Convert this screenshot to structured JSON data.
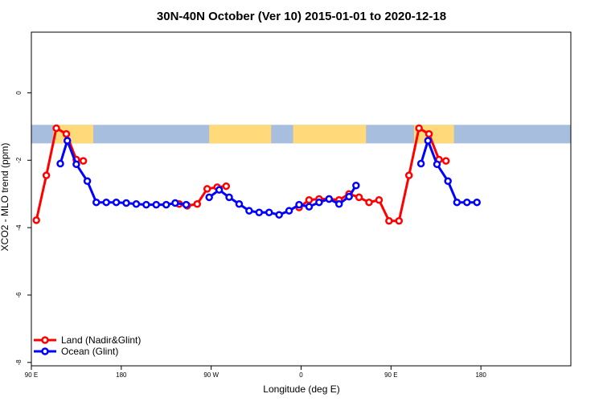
{
  "chart_data": {
    "type": "line",
    "title": "30N-40N October (Ver 10)   2015-01-01 to 2020-12-18",
    "xlabel": "Longitude (deg E)",
    "ylabel": "XCO2 - MLO trend (ppm)",
    "xlim": [
      0,
      540
    ],
    "ylim": [
      -8.1,
      1.8
    ],
    "x_ticks": [
      {
        "value": 0,
        "label": "90 E"
      },
      {
        "value": 90,
        "label": "180"
      },
      {
        "value": 180,
        "label": "90 W"
      },
      {
        "value": 270,
        "label": "0"
      },
      {
        "value": 360,
        "label": "90 E"
      },
      {
        "value": 450,
        "label": "180"
      }
    ],
    "y_ticks": [
      {
        "value": 0,
        "label": "0"
      },
      {
        "value": -2,
        "label": "-2"
      },
      {
        "value": -4,
        "label": "-4"
      },
      {
        "value": -6,
        "label": "-6"
      },
      {
        "value": -8,
        "label": "-8"
      }
    ],
    "map_band": {
      "y_top": -0.95,
      "y_bottom": -1.5,
      "land_color": "#ffd97a",
      "ocean_color": "#a7bedf"
    },
    "legend": {
      "position": "bottom-left"
    },
    "series": [
      {
        "name": "Land (Nadir&Glint)",
        "color": "#ff0000",
        "points": [
          [
            5,
            -3.78
          ],
          [
            15,
            -2.45
          ],
          [
            25,
            -1.05
          ],
          [
            35,
            -1.22
          ],
          [
            45,
            -1.98
          ],
          [
            52,
            -2.02
          ],
          [
            148,
            -3.3
          ],
          [
            156,
            -3.35
          ],
          [
            166,
            -3.3
          ],
          [
            176,
            -2.85
          ],
          [
            186,
            -2.8
          ],
          [
            195,
            -2.77
          ],
          [
            268,
            -3.4
          ],
          [
            278,
            -3.18
          ],
          [
            288,
            -3.15
          ],
          [
            298,
            -3.15
          ],
          [
            308,
            -3.18
          ],
          [
            318,
            -3.0
          ],
          [
            328,
            -3.1
          ],
          [
            338,
            -3.25
          ],
          [
            348,
            -3.18
          ],
          [
            358,
            -3.8
          ],
          [
            368,
            -3.8
          ],
          [
            378,
            -2.45
          ],
          [
            388,
            -1.05
          ],
          [
            398,
            -1.22
          ],
          [
            408,
            -1.98
          ],
          [
            415,
            -2.02
          ]
        ]
      },
      {
        "name": "Ocean (Glint)",
        "color": "#0000ff",
        "points": [
          [
            29,
            -2.1
          ],
          [
            36,
            -1.42
          ],
          [
            45,
            -2.12
          ],
          [
            56,
            -2.62
          ],
          [
            65,
            -3.25
          ],
          [
            75,
            -3.25
          ],
          [
            85,
            -3.25
          ],
          [
            95,
            -3.27
          ],
          [
            105,
            -3.3
          ],
          [
            115,
            -3.32
          ],
          [
            125,
            -3.32
          ],
          [
            135,
            -3.32
          ],
          [
            144,
            -3.27
          ],
          [
            155,
            -3.32
          ],
          [
            178,
            -3.1
          ],
          [
            188,
            -2.88
          ],
          [
            198,
            -3.1
          ],
          [
            208,
            -3.3
          ],
          [
            218,
            -3.5
          ],
          [
            228,
            -3.55
          ],
          [
            238,
            -3.55
          ],
          [
            248,
            -3.62
          ],
          [
            258,
            -3.5
          ],
          [
            268,
            -3.32
          ],
          [
            278,
            -3.38
          ],
          [
            288,
            -3.25
          ],
          [
            298,
            -3.15
          ],
          [
            308,
            -3.3
          ],
          [
            318,
            -3.08
          ],
          [
            325,
            -2.75
          ],
          [
            390,
            -2.1
          ],
          [
            397,
            -1.42
          ],
          [
            406,
            -2.12
          ],
          [
            417,
            -2.62
          ],
          [
            426,
            -3.25
          ],
          [
            436,
            -3.25
          ],
          [
            446,
            -3.25
          ]
        ]
      }
    ]
  }
}
